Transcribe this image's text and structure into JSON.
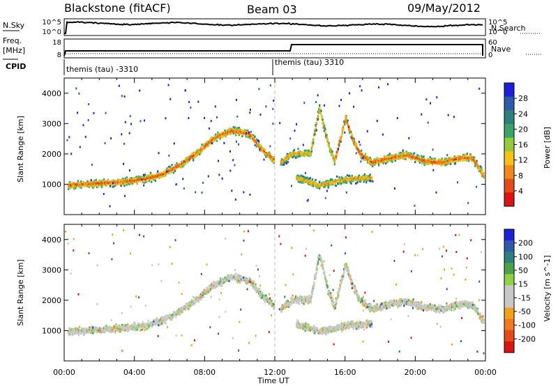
{
  "header": {
    "station": "Blackstone (fitACF)",
    "beam": "Beam 03",
    "date": "09/May/2012"
  },
  "left_labels": {
    "nsky": "N.Sky",
    "freq": "Freq.",
    "mhz": "[MHz]",
    "cpid": "CPID"
  },
  "right_labels": {
    "nsearch": "N.Search",
    "nave": "Nave"
  },
  "noise_panel": {
    "ticks_left": [
      "10^5",
      "10^0"
    ],
    "ticks_right": [
      "10^5",
      "10^0"
    ]
  },
  "freq_panel": {
    "ticks_left": [
      "18",
      "8"
    ],
    "ticks_right": [
      "60",
      "0"
    ]
  },
  "cpid_panel": {
    "labels": [
      "themis (tau) -3310",
      "themis (tau) 3310"
    ]
  },
  "colors": {
    "power_scale": [
      "#1f1fd6",
      "#2e5aa8",
      "#2f7f7f",
      "#3aa36a",
      "#98c93b",
      "#f2c21a",
      "#f08a1f",
      "#e34a1c",
      "#d81515"
    ],
    "velocity_scale": [
      "#1f1fd6",
      "#2e5aa8",
      "#2f7f7f",
      "#4ea04a",
      "#8fd24a",
      "#c8c8c8",
      "#c8c8c8",
      "#f2a21a",
      "#f07a1f",
      "#e34a1c",
      "#d81515"
    ],
    "frame": "#000000"
  },
  "chart_data": [
    {
      "type": "heatmap",
      "panel": "power",
      "ylabel": "Slant Range [km]",
      "ylim": [
        0,
        4500
      ],
      "xlim": [
        0,
        24
      ],
      "yticks": [
        "1000",
        "2000",
        "3000",
        "4000"
      ],
      "xticks": [
        "00:00",
        "04:00",
        "08:00",
        "12:00",
        "16:00",
        "20:00",
        "00:00"
      ],
      "colorbar_label": "Power [dB]",
      "colorbar_ticks": [
        "28",
        "24",
        "20",
        "16",
        "12",
        "8",
        "4"
      ],
      "echo_bands": [
        {
          "t": [
            0.2,
            1.5,
            3.0,
            4.5,
            5.5,
            6.5,
            7.5,
            8.5,
            9.5,
            10.5,
            11.2,
            11.9
          ],
          "range": [
            950,
            1000,
            1050,
            1150,
            1300,
            1600,
            2000,
            2500,
            2750,
            2650,
            2150,
            1800
          ]
        },
        {
          "t": [
            12.3,
            13.0,
            14.0,
            14.5,
            15.0,
            15.4
          ],
          "range": [
            1700,
            2000,
            2000,
            3500,
            2300,
            1700
          ]
        },
        {
          "t": [
            15.4,
            16.0,
            16.3,
            16.8,
            17.5,
            18.5,
            19.5,
            20.5,
            21.5,
            22.5,
            23.2,
            23.9
          ],
          "range": [
            1800,
            3200,
            2600,
            2000,
            1700,
            1850,
            1950,
            1750,
            1700,
            1850,
            1850,
            1250
          ]
        },
        {
          "t": [
            13.2,
            14.5,
            16.0,
            17.5
          ],
          "range": [
            1200,
            950,
            1150,
            1200
          ]
        }
      ]
    },
    {
      "type": "heatmap",
      "panel": "velocity",
      "ylabel": "Slant Range [km]",
      "xlabel": "Time UT",
      "ylim": [
        0,
        4500
      ],
      "xlim": [
        0,
        24
      ],
      "yticks": [
        "1000",
        "2000",
        "3000",
        "4000"
      ],
      "xticks": [
        "00:00",
        "04:00",
        "08:00",
        "12:00",
        "16:00",
        "20:00",
        "00:00"
      ],
      "colorbar_label": "Velocity [m s^-1]",
      "colorbar_ticks": [
        "200",
        "100",
        "50",
        "15",
        "-15",
        "-50",
        "-100",
        "-200"
      ],
      "echo_bands": [
        {
          "t": [
            0.2,
            1.5,
            3.0,
            4.5,
            5.5,
            6.5,
            7.5,
            8.5,
            9.5,
            10.5,
            11.2,
            11.9
          ],
          "range": [
            950,
            1000,
            1050,
            1150,
            1300,
            1600,
            2000,
            2500,
            2750,
            2650,
            2150,
            1800
          ]
        },
        {
          "t": [
            12.3,
            13.0,
            14.0,
            14.5,
            15.0,
            15.4
          ],
          "range": [
            1700,
            2000,
            2000,
            3500,
            2300,
            1700
          ]
        },
        {
          "t": [
            15.4,
            16.0,
            16.3,
            16.8,
            17.5,
            18.5,
            19.5,
            20.5,
            21.5,
            22.5,
            23.2,
            23.9
          ],
          "range": [
            1800,
            3200,
            2600,
            2000,
            1700,
            1850,
            1950,
            1750,
            1700,
            1850,
            1850,
            1250
          ]
        },
        {
          "t": [
            13.2,
            14.5,
            16.0,
            17.5
          ],
          "range": [
            1200,
            950,
            1150,
            1200
          ]
        }
      ]
    }
  ]
}
